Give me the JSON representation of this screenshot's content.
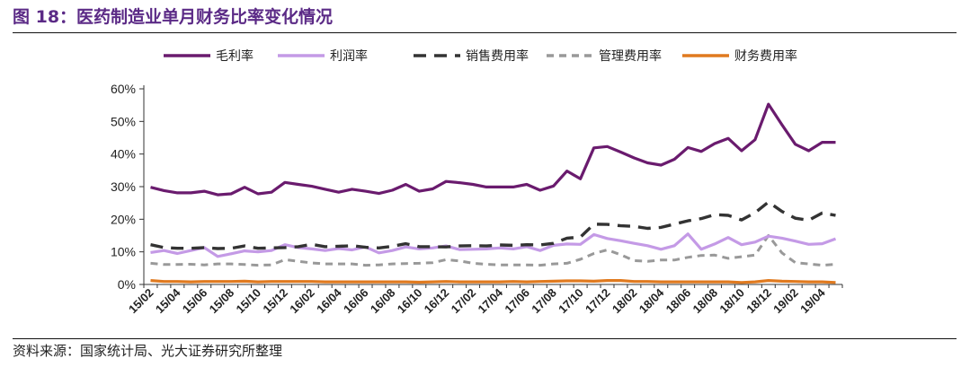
{
  "figure_title": "图 18：医药制造业单月财务比率变化情况",
  "source_note": "资料来源：国家统计局、光大证券研究所整理",
  "chart_data": {
    "type": "line",
    "title": "",
    "xlabel": "",
    "ylabel": "",
    "ylim": [
      0,
      60
    ],
    "y_ticks": [
      "0%",
      "10%",
      "20%",
      "30%",
      "40%",
      "50%",
      "60%"
    ],
    "grid": false,
    "legend_position": "top",
    "x": [
      "15/02",
      "15/03",
      "15/04",
      "15/05",
      "15/06",
      "15/07",
      "15/08",
      "15/09",
      "15/10",
      "15/11",
      "15/12",
      "16/01",
      "16/02",
      "16/03",
      "16/04",
      "16/05",
      "16/06",
      "16/07",
      "16/08",
      "16/09",
      "16/10",
      "16/11",
      "16/12",
      "17/01",
      "17/02",
      "17/03",
      "17/04",
      "17/05",
      "17/06",
      "17/07",
      "17/08",
      "17/09",
      "17/10",
      "17/11",
      "17/12",
      "18/01",
      "18/02",
      "18/03",
      "18/04",
      "18/05",
      "18/06",
      "18/07",
      "18/08",
      "18/09",
      "18/10",
      "18/11",
      "18/12",
      "19/01",
      "19/02",
      "19/03",
      "19/04",
      "19/05"
    ],
    "x_tick_labels": [
      "15/02",
      "15/04",
      "15/06",
      "15/08",
      "15/10",
      "15/12",
      "16/02",
      "16/04",
      "16/06",
      "16/08",
      "16/10",
      "16/12",
      "17/02",
      "17/04",
      "17/06",
      "17/08",
      "17/10",
      "17/12",
      "18/02",
      "18/04",
      "18/06",
      "18/08",
      "18/10",
      "18/12",
      "19/02",
      "19/04"
    ],
    "series": [
      {
        "name": "毛利率",
        "color": "#6a1b6e",
        "dash": "solid",
        "values": [
          29.8,
          28.8,
          28.1,
          28.1,
          28.6,
          27.5,
          27.8,
          29.8,
          27.8,
          28.3,
          31.3,
          30.7,
          30.1,
          29.2,
          28.3,
          29.2,
          28.6,
          27.9,
          28.9,
          30.7,
          28.6,
          29.3,
          31.6,
          31.2,
          30.7,
          29.9,
          29.9,
          29.9,
          30.7,
          28.9,
          30.2,
          34.8,
          32.4,
          41.9,
          42.3,
          40.6,
          38.8,
          37.3,
          36.6,
          38.4,
          42.0,
          40.8,
          43.2,
          44.8,
          41.0,
          44.4,
          55.3,
          49.0,
          43.0,
          41.0,
          43.6,
          43.6
        ]
      },
      {
        "name": "利润率",
        "color": "#c49ae6",
        "dash": "solid",
        "values": [
          9.8,
          10.4,
          9.5,
          10.4,
          11.3,
          8.6,
          9.4,
          10.3,
          10.0,
          10.4,
          12.2,
          11.3,
          10.9,
          10.4,
          11.0,
          10.6,
          11.5,
          9.7,
          10.4,
          11.5,
          10.9,
          11.2,
          11.8,
          10.7,
          10.8,
          10.9,
          11.2,
          10.9,
          11.6,
          10.4,
          12.0,
          12.4,
          12.3,
          15.3,
          14.1,
          13.4,
          12.6,
          11.9,
          10.8,
          11.9,
          15.5,
          10.8,
          12.4,
          14.4,
          12.2,
          13.0,
          14.8,
          14.2,
          13.3,
          12.3,
          12.5,
          14.0
        ]
      },
      {
        "name": "销售费用率",
        "color": "#333333",
        "dash": "long",
        "values": [
          12.2,
          11.3,
          11.1,
          11.1,
          11.3,
          11.0,
          11.1,
          11.8,
          11.1,
          11.2,
          11.3,
          11.6,
          12.3,
          11.6,
          11.7,
          11.9,
          11.4,
          11.2,
          11.7,
          12.5,
          11.6,
          11.6,
          11.5,
          11.8,
          11.9,
          11.8,
          12.1,
          12.0,
          12.2,
          12.1,
          12.6,
          14.2,
          14.5,
          18.5,
          18.4,
          18.0,
          17.8,
          17.2,
          17.5,
          18.5,
          19.5,
          20.2,
          21.4,
          21.2,
          19.8,
          22.0,
          25.3,
          22.4,
          20.3,
          19.7,
          21.9,
          21.2
        ]
      },
      {
        "name": "管理费用率",
        "color": "#999999",
        "dash": "short",
        "values": [
          6.5,
          6.1,
          6.1,
          6.2,
          6.0,
          6.3,
          6.3,
          6.1,
          5.9,
          6.0,
          7.6,
          7.1,
          6.6,
          6.3,
          6.3,
          6.3,
          5.9,
          6.0,
          6.3,
          6.4,
          6.5,
          6.7,
          7.6,
          7.2,
          6.5,
          6.2,
          6.0,
          6.0,
          6.0,
          5.9,
          6.3,
          6.5,
          7.7,
          9.5,
          10.6,
          9.1,
          7.3,
          7.1,
          7.5,
          7.5,
          8.3,
          8.9,
          9.0,
          8.0,
          8.5,
          9.0,
          15.0,
          9.7,
          6.7,
          6.3,
          5.9,
          6.2
        ]
      },
      {
        "name": "财务费用率",
        "color": "#e07a1f",
        "dash": "solid",
        "values": [
          1.2,
          0.9,
          0.9,
          0.8,
          0.9,
          0.9,
          0.9,
          1.0,
          0.8,
          0.9,
          0.9,
          0.9,
          0.9,
          0.8,
          0.8,
          0.8,
          0.8,
          0.8,
          0.8,
          0.8,
          0.7,
          0.8,
          0.9,
          0.8,
          0.8,
          0.8,
          0.8,
          0.9,
          0.8,
          0.9,
          1.0,
          1.1,
          1.1,
          1.0,
          1.2,
          1.2,
          0.9,
          0.9,
          0.8,
          0.8,
          0.8,
          0.8,
          0.8,
          0.8,
          0.6,
          0.8,
          1.2,
          1.0,
          0.9,
          0.8,
          0.8,
          0.6
        ]
      }
    ]
  }
}
